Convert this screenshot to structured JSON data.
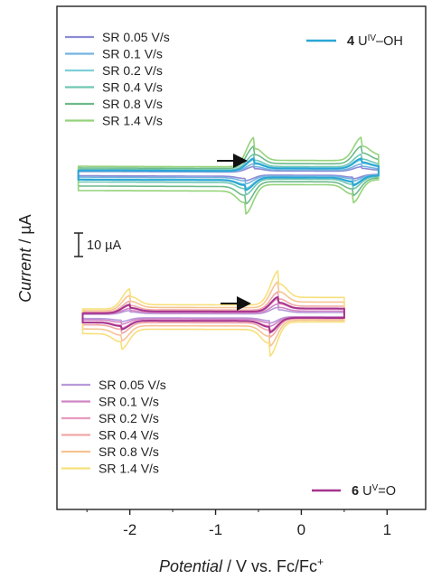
{
  "chart_data": {
    "type": "line",
    "xlabel_italic": "Potential",
    "xlabel_rest": " / V vs. Fc/Fc",
    "xlabel_sup": "+",
    "ylabel_italic": "Current",
    "ylabel_rest": " / µA",
    "x_ticks": [
      {
        "value": -2,
        "label": "-2"
      },
      {
        "value": -1,
        "label": "-1"
      },
      {
        "value": 0,
        "label": "0"
      },
      {
        "value": 1,
        "label": "1"
      }
    ],
    "xlim": [
      -2.85,
      1.45
    ],
    "grid": false,
    "scale_bar": {
      "label": "10 µA",
      "value_uA": 10
    },
    "panels": [
      {
        "id": "top",
        "compound_label": {
          "bold": "4",
          "main": " U",
          "sup": "IV",
          "tail": "–OH",
          "color": "#2aa6d6"
        },
        "legend_placement": "top-left",
        "sweep_start_V": -2.6,
        "sweep_end_V": 0.9,
        "series": [
          {
            "name": "SR 0.05 V/s",
            "scan_rate": 0.05,
            "color": "#8d8ad6"
          },
          {
            "name": "SR 0.1 V/s",
            "scan_rate": 0.1,
            "color": "#74b3e0"
          },
          {
            "name": "SR 0.2 V/s",
            "scan_rate": 0.2,
            "color": "#7dcfd8"
          },
          {
            "name": "SR 0.4 V/s",
            "scan_rate": 0.4,
            "color": "#6fc7b4"
          },
          {
            "name": "SR 0.8 V/s",
            "scan_rate": 0.8,
            "color": "#6dba8a"
          },
          {
            "name": "SR 1.4 V/s",
            "scan_rate": 1.4,
            "color": "#94d37a"
          }
        ],
        "couples": [
          {
            "E_half_V": -0.6,
            "peak_uA_at_1V_s": 9.5
          },
          {
            "E_half_V": 0.65,
            "peak_uA_at_1V_s": 7.5
          }
        ]
      },
      {
        "id": "bottom",
        "compound_label": {
          "bold": "6",
          "main": " U",
          "sup": "V",
          "tail": "=O",
          "color": "#a5338f"
        },
        "legend_placement": "bottom-left",
        "sweep_start_V": -2.55,
        "sweep_end_V": 0.5,
        "series": [
          {
            "name": "SR 0.05 V/s",
            "scan_rate": 0.05,
            "color": "#b79adb"
          },
          {
            "name": "SR 0.1 V/s",
            "scan_rate": 0.1,
            "color": "#cf86c6"
          },
          {
            "name": "SR 0.2 V/s",
            "scan_rate": 0.2,
            "color": "#e89bc0"
          },
          {
            "name": "SR 0.4 V/s",
            "scan_rate": 0.4,
            "color": "#f0a8a6"
          },
          {
            "name": "SR 0.8 V/s",
            "scan_rate": 0.8,
            "color": "#f6c493"
          },
          {
            "name": "SR 1.4 V/s",
            "scan_rate": 1.4,
            "color": "#f7e07c"
          }
        ],
        "couples": [
          {
            "E_half_V": -2.05,
            "peak_uA_at_1V_s": 6.5
          },
          {
            "E_half_V": -0.32,
            "peak_uA_at_1V_s": 11
          }
        ]
      }
    ]
  }
}
